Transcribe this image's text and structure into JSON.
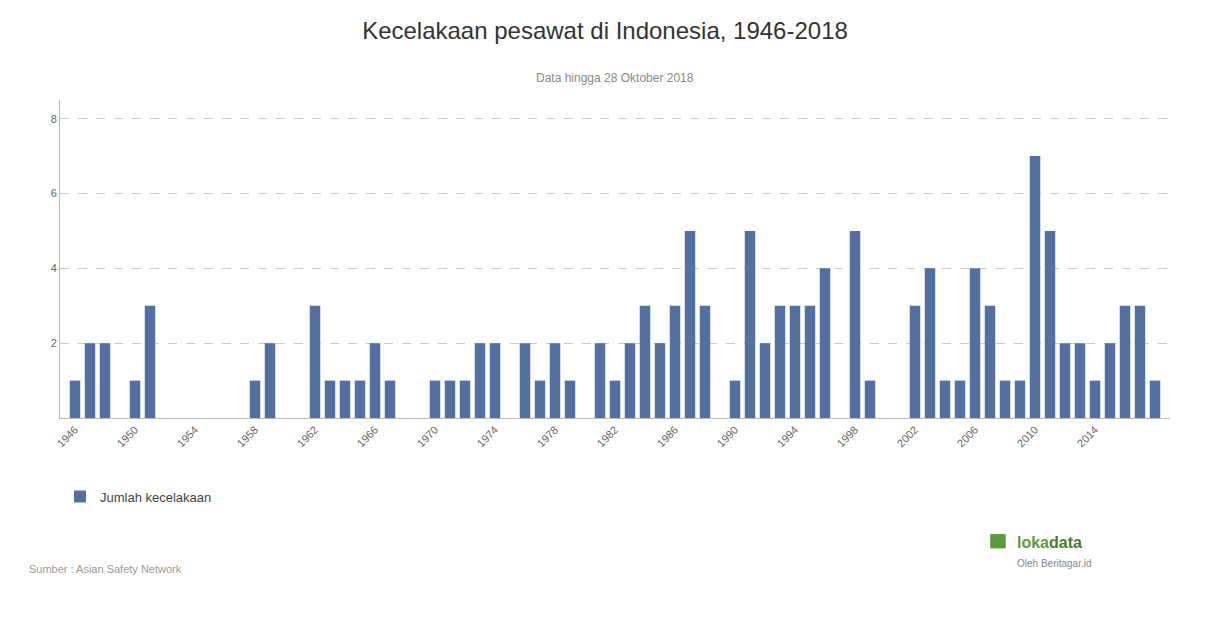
{
  "chart_data": {
    "type": "bar",
    "title": "Kecelakaan pesawat di Indonesia, 1946-2018",
    "subtitle": "Data hingga 28 Oktober 2018",
    "annotations": [
      {
        "text": "Sumber : Asian Safety Network"
      },
      {
        "text": "loka",
        "color": "#5a9a3a"
      },
      {
        "text": "data",
        "color": "#4a7a2a"
      },
      {
        "text": "Oleh Beritagar.id"
      }
    ],
    "x": [
      1946,
      1947,
      1948,
      1949,
      1950,
      1951,
      1952,
      1953,
      1954,
      1955,
      1956,
      1957,
      1958,
      1959,
      1960,
      1961,
      1962,
      1963,
      1964,
      1965,
      1966,
      1967,
      1968,
      1969,
      1970,
      1971,
      1972,
      1973,
      1974,
      1975,
      1976,
      1977,
      1978,
      1979,
      1980,
      1981,
      1982,
      1983,
      1984,
      1985,
      1986,
      1987,
      1988,
      1989,
      1990,
      1991,
      1992,
      1993,
      1994,
      1995,
      1996,
      1997,
      1998,
      1999,
      2000,
      2001,
      2002,
      2003,
      2004,
      2005,
      2006,
      2007,
      2008,
      2009,
      2010,
      2011,
      2012,
      2013,
      2014,
      2015,
      2016,
      2017,
      2018
    ],
    "series": [
      {
        "name": "Jumlah kecelakaan",
        "color": "#5470a0",
        "values": [
          1,
          2,
          2,
          0,
          1,
          3,
          0,
          0,
          0,
          0,
          0,
          0,
          1,
          2,
          0,
          0,
          3,
          1,
          1,
          1,
          2,
          1,
          0,
          0,
          1,
          1,
          1,
          2,
          2,
          0,
          2,
          1,
          2,
          1,
          0,
          2,
          1,
          2,
          3,
          2,
          3,
          5,
          3,
          0,
          1,
          5,
          2,
          3,
          3,
          3,
          4,
          0,
          5,
          1,
          0,
          0,
          3,
          4,
          1,
          1,
          4,
          3,
          1,
          1,
          7,
          5,
          2,
          2,
          1,
          2,
          3,
          3,
          1
        ]
      }
    ],
    "xlim": [
      1945,
      2019
    ],
    "xticks": [
      1946,
      1950,
      1954,
      1958,
      1962,
      1966,
      1970,
      1974,
      1978,
      1982,
      1986,
      1990,
      1994,
      1998,
      2002,
      2006,
      2010,
      2014
    ],
    "ylim": [
      0,
      8.5
    ],
    "yticks": [
      2,
      4,
      6,
      8
    ],
    "grid": true,
    "legend": "bottom left"
  }
}
